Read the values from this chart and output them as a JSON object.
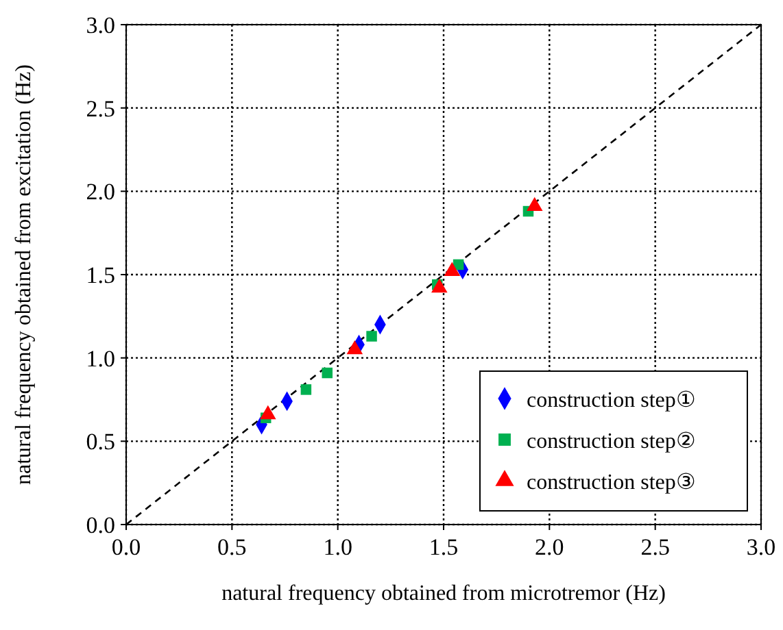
{
  "chart_data": {
    "type": "scatter",
    "xlabel": "natural frequency obtained from microtremor (Hz)",
    "ylabel": "natural frequency obtained from excitation (Hz)",
    "xlim": [
      0,
      3
    ],
    "ylim": [
      0,
      3
    ],
    "xticks": [
      {
        "value": 0,
        "label": "0.0"
      },
      {
        "value": 0.5,
        "label": "0.5"
      },
      {
        "value": 1,
        "label": "1.0"
      },
      {
        "value": 1.5,
        "label": "1.5"
      },
      {
        "value": 2,
        "label": "2.0"
      },
      {
        "value": 2.5,
        "label": "2.5"
      },
      {
        "value": 3,
        "label": "3.0"
      }
    ],
    "yticks": [
      {
        "value": 0,
        "label": "0.0"
      },
      {
        "value": 0.5,
        "label": "0.5"
      },
      {
        "value": 1,
        "label": "1.0"
      },
      {
        "value": 1.5,
        "label": "1.5"
      },
      {
        "value": 2,
        "label": "2.0"
      },
      {
        "value": 2.5,
        "label": "2.5"
      },
      {
        "value": 3,
        "label": "3.0"
      }
    ],
    "grid": true,
    "legend": "bottom right",
    "series": [
      {
        "type": "line",
        "line_style": "dashed",
        "color": "#000000",
        "x": [
          0,
          3
        ],
        "values": [
          0,
          3
        ]
      },
      {
        "name": "construction step①",
        "color": "#0000ff",
        "marker": "diamond",
        "x": [
          0.64,
          0.76,
          1.1,
          1.2,
          1.59
        ],
        "values": [
          0.6,
          0.74,
          1.08,
          1.2,
          1.53
        ]
      },
      {
        "name": "construction step②",
        "color": "#00b050",
        "marker": "square",
        "x": [
          0.66,
          0.85,
          0.95,
          1.16,
          1.47,
          1.57,
          1.9
        ],
        "values": [
          0.64,
          0.81,
          0.91,
          1.13,
          1.44,
          1.56,
          1.88
        ]
      },
      {
        "name": "construction step③",
        "color": "#ff0000",
        "marker": "triangle",
        "x": [
          0.67,
          1.08,
          1.48,
          1.54,
          1.93
        ],
        "values": [
          0.66,
          1.05,
          1.42,
          1.52,
          1.91
        ]
      }
    ]
  }
}
